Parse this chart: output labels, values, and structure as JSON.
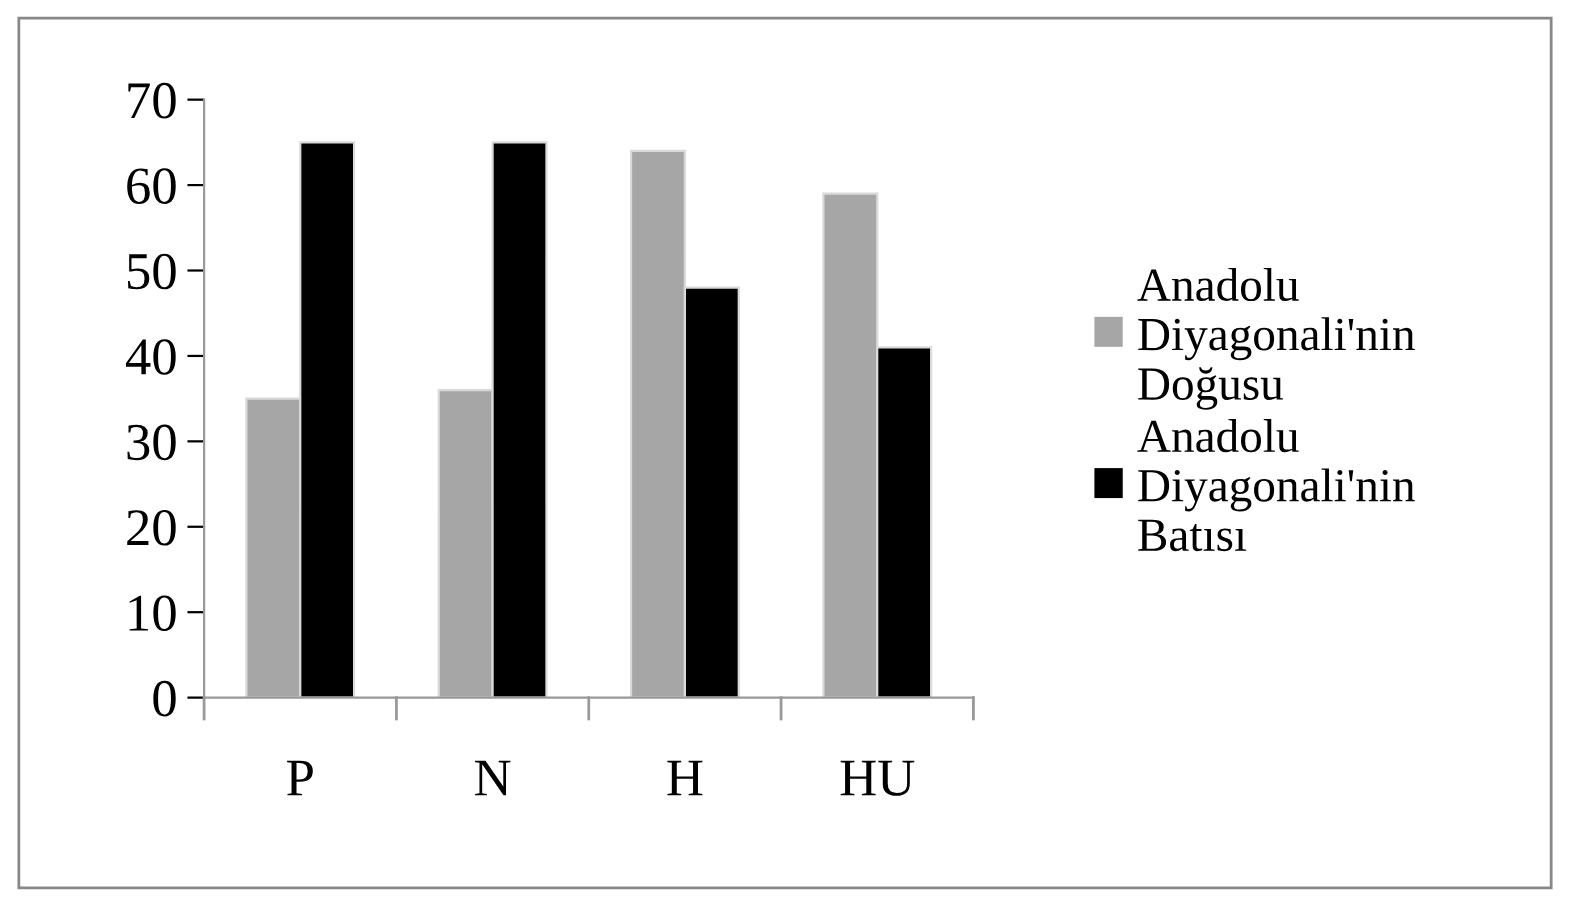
{
  "chart_data": {
    "type": "bar",
    "categories": [
      "P",
      "N",
      "H",
      "HU"
    ],
    "series": [
      {
        "name": "Anadolu Diyagonali'nin Doğusu",
        "color": "#a6a6a6",
        "values": [
          35,
          36,
          64,
          59
        ]
      },
      {
        "name": "Anadolu Diyagonali'nin Batısı",
        "color": "#000000",
        "values": [
          65,
          65,
          48,
          41
        ]
      }
    ],
    "ylim": [
      0,
      70
    ],
    "yticks": [
      0,
      10,
      20,
      30,
      40,
      50,
      60,
      70
    ],
    "grid": false,
    "legend": "right"
  }
}
